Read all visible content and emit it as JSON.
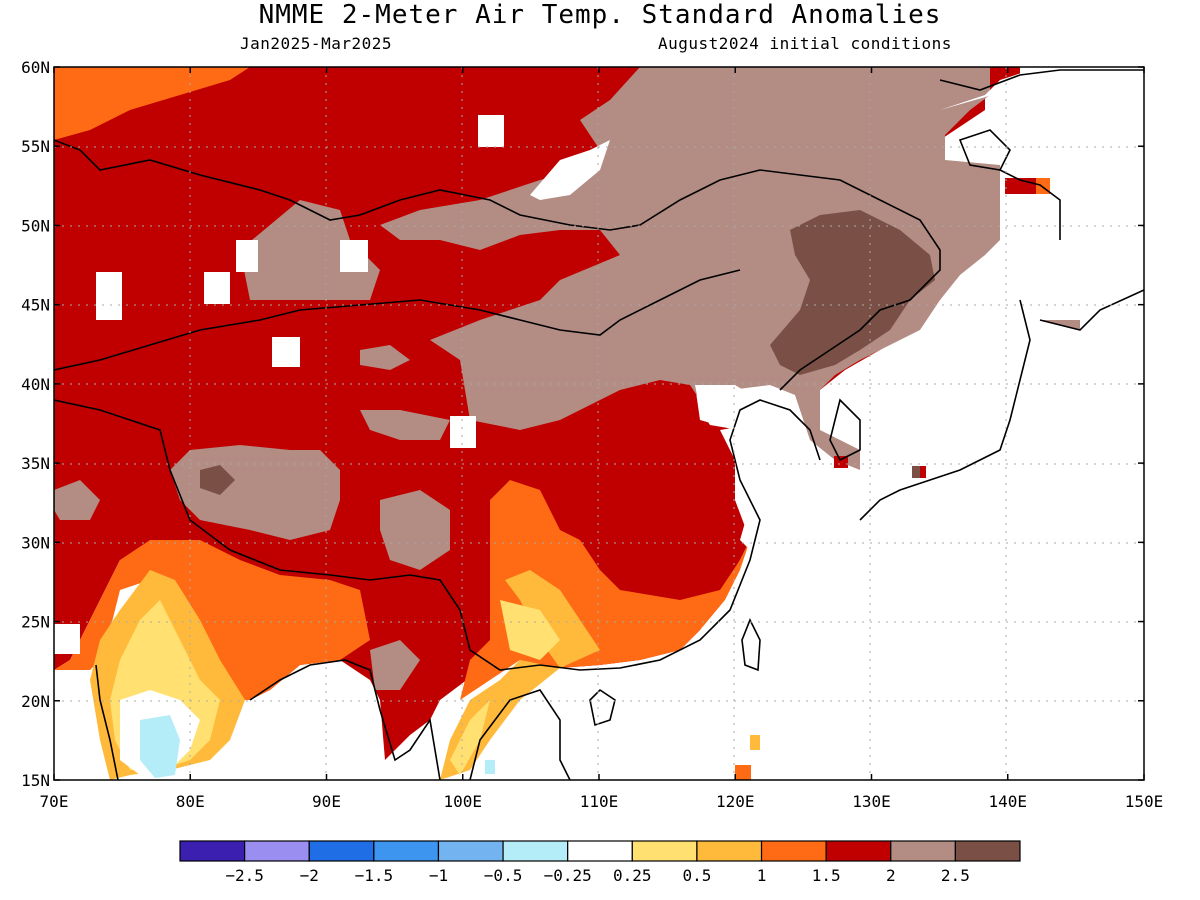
{
  "header": {
    "title": "NMME 2-Meter Air Temp. Standard Anomalies",
    "period": "Jan2025-Mar2025",
    "init": "August2024 initial conditions"
  },
  "map": {
    "lat_ticks": [
      "15N",
      "20N",
      "25N",
      "30N",
      "35N",
      "40N",
      "45N",
      "50N",
      "55N",
      "60N"
    ],
    "lon_ticks": [
      "70E",
      "80E",
      "90E",
      "100E",
      "110E",
      "120E",
      "130E",
      "140E",
      "150E"
    ],
    "lon_range": [
      70,
      150
    ],
    "lat_range": [
      15,
      60
    ]
  },
  "colorbar": {
    "labels": [
      "-2.5",
      "-2",
      "-1.5",
      "-1",
      "-0.5",
      "-0.25",
      "0.25",
      "0.5",
      "1",
      "1.5",
      "2",
      "2.5"
    ],
    "colors": [
      "#3a1fb0",
      "#9a8ff0",
      "#1f6ee6",
      "#3d95f0",
      "#73b4f0",
      "#b4ecf8",
      "#ffffff",
      "#ffe070",
      "#ffba3c",
      "#ff6a14",
      "#c00000",
      "#b38c84",
      "#7a5046"
    ]
  }
}
